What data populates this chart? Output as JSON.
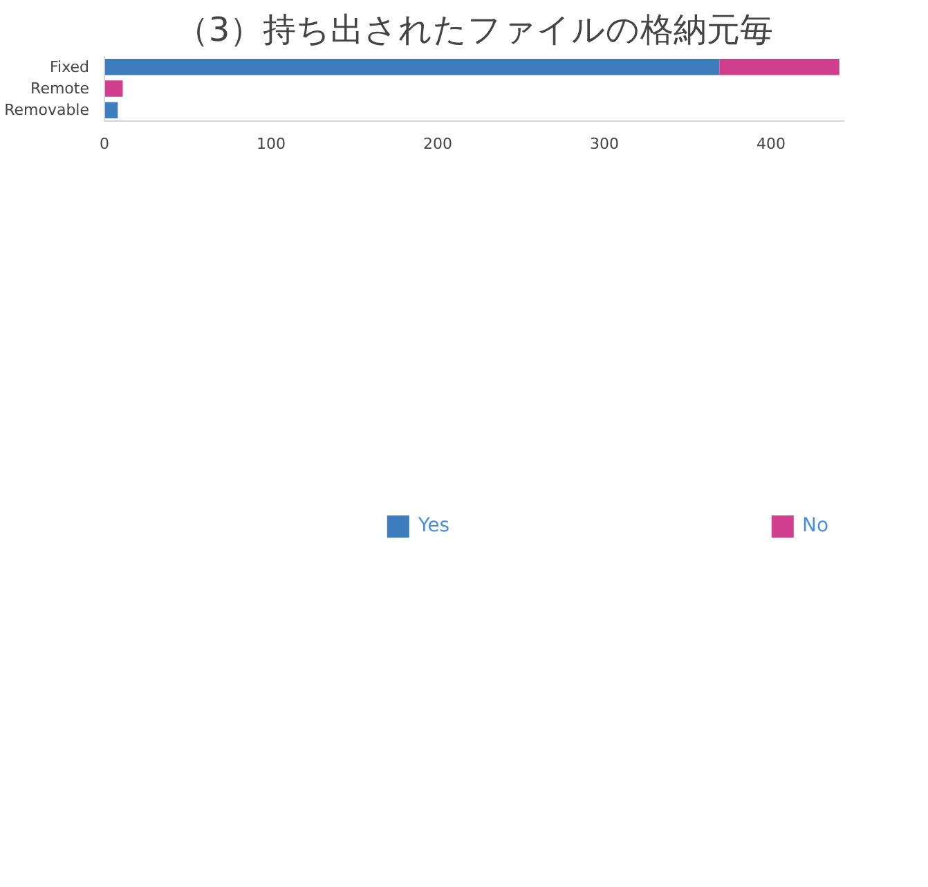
{
  "chart_data": {
    "type": "bar",
    "title": "（3）持ち出されたファイルの格納元毎",
    "orientation": "horizontal",
    "stacked": true,
    "categories": [
      "Fixed",
      "Remote",
      "Removable"
    ],
    "series": [
      {
        "name": "Yes",
        "color": "#3d7dbd",
        "values": [
          369,
          0,
          8
        ]
      },
      {
        "name": "No",
        "color": "#d03f8d",
        "values": [
          72,
          11,
          0
        ]
      }
    ],
    "xlim": [
      0,
      444
    ],
    "xticks": [
      0,
      100,
      200,
      300,
      400
    ],
    "grid": false,
    "legend": "bottom"
  }
}
